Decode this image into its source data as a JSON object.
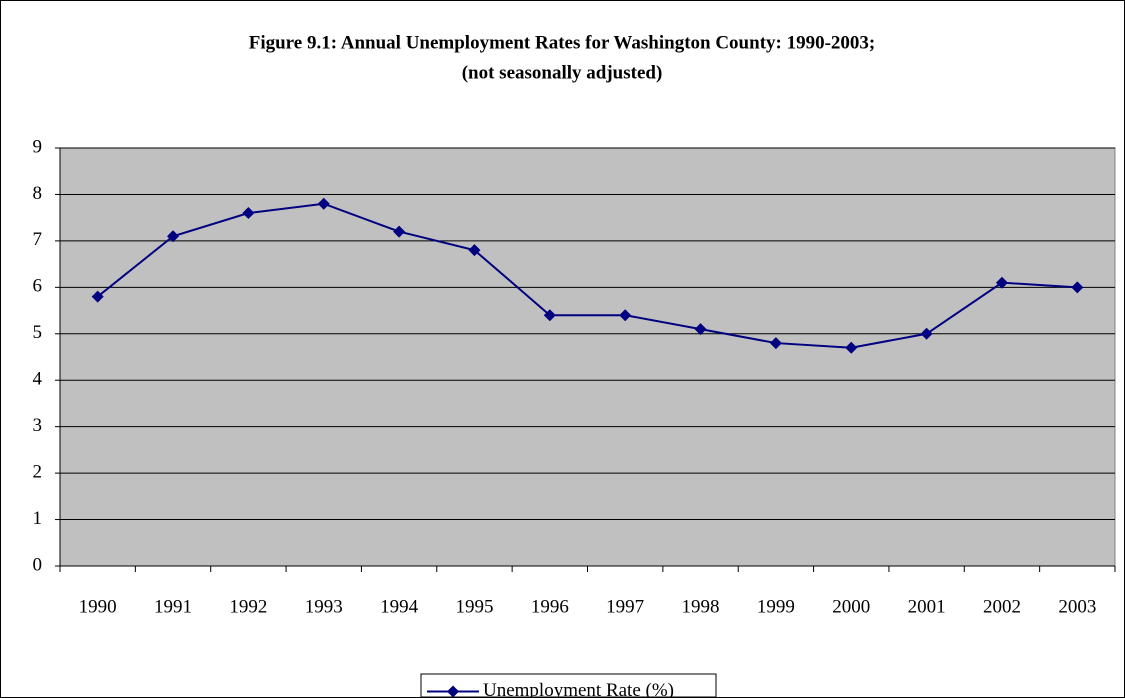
{
  "chart_data": {
    "type": "line",
    "title": "Figure 9.1: Annual Unemployment Rates for Washington County: 1990-2003;",
    "subtitle": "(not seasonally adjusted)",
    "categories": [
      "1990",
      "1991",
      "1992",
      "1993",
      "1994",
      "1995",
      "1996",
      "1997",
      "1998",
      "1999",
      "2000",
      "2001",
      "2002",
      "2003"
    ],
    "series": [
      {
        "name": "Unemployment Rate (%)",
        "color": "#000080",
        "values": [
          5.8,
          7.1,
          7.6,
          7.8,
          7.2,
          6.8,
          5.4,
          5.4,
          5.1,
          4.8,
          4.7,
          5.0,
          6.1,
          6.0
        ]
      }
    ],
    "ylim": [
      0,
      9
    ],
    "yticks": [
      0,
      1,
      2,
      3,
      4,
      5,
      6,
      7,
      8,
      9
    ],
    "grid": true,
    "legend": "bottom"
  }
}
